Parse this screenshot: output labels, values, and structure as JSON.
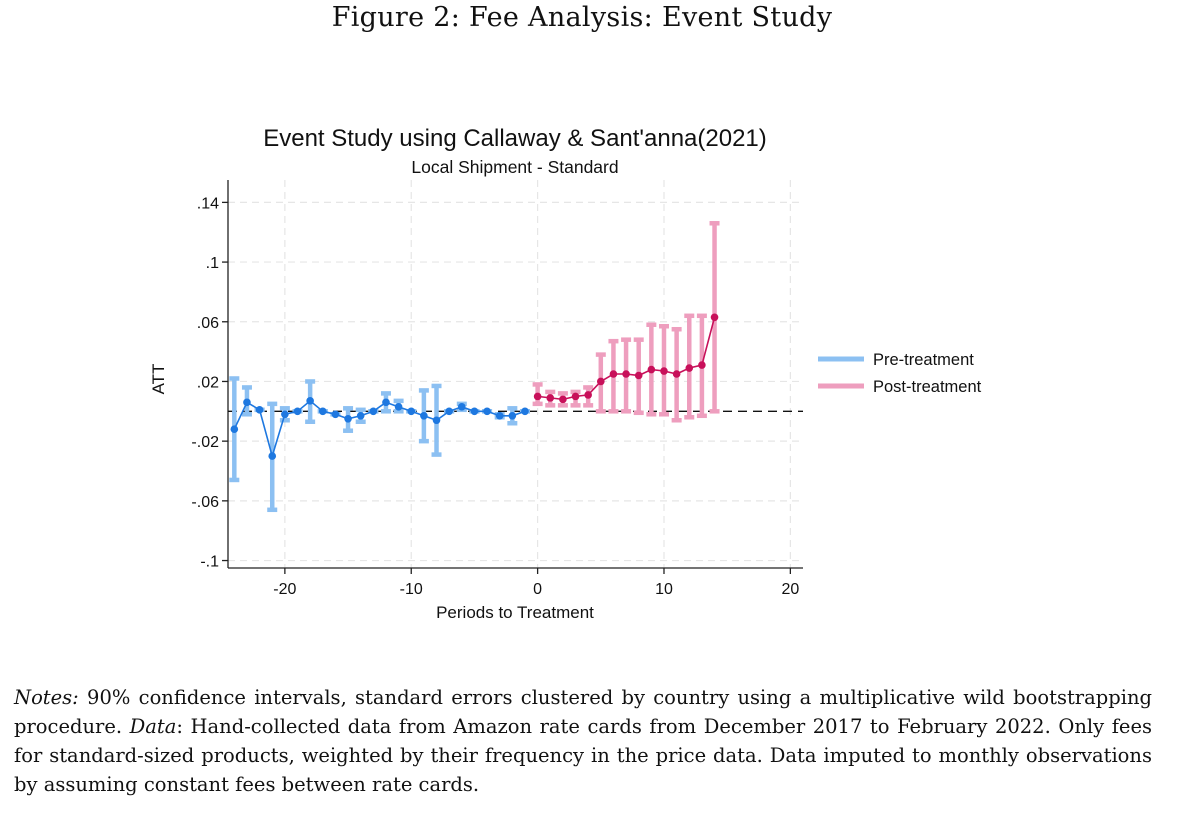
{
  "figure": {
    "caption": "Figure 2: Fee Analysis: Event Study"
  },
  "notes": {
    "label": "Notes:",
    "text1": " 90% confidence intervals, standard errors clustered by country using a multiplicative wild bootstrapping procedure. ",
    "data_label": "Data",
    "text2": ": Hand-collected data from Amazon rate cards from December 2017 to February 2022. Only fees for standard-sized products, weighted by their frequency in the price data. Data imputed to monthly observations by assuming constant fees between rate cards."
  },
  "chart_data": {
    "type": "scatter",
    "title": "Event Study using Callaway & Sant'anna(2021)",
    "subtitle": "Local Shipment - Standard",
    "xlabel": "Periods to Treatment",
    "ylabel": "ATT",
    "xlim": [
      -24.5,
      21
    ],
    "ylim": [
      -0.105,
      0.155
    ],
    "xticks": [
      -20,
      -10,
      0,
      10,
      20
    ],
    "xtick_labels": [
      "-20",
      "-10",
      "0",
      "10",
      "20"
    ],
    "yticks": [
      0.14,
      0.1,
      0.06,
      0.02,
      -0.02,
      -0.06,
      -0.1
    ],
    "ytick_labels": [
      ".14",
      ".1",
      ".06",
      ".02",
      "-.02",
      "-.06",
      "-.1"
    ],
    "grid": true,
    "reference_line_y": 0,
    "legend_position": "right",
    "series": [
      {
        "name": "Pre-treatment",
        "color": "#1E78E0",
        "ci_color": "#8CC0F2",
        "x": [
          -24,
          -23,
          -22,
          -21,
          -20,
          -19,
          -18,
          -17,
          -16,
          -15,
          -14,
          -13,
          -12,
          -11,
          -10,
          -9,
          -8,
          -7,
          -6,
          -5,
          -4,
          -3,
          -2,
          -1
        ],
        "y": [
          -0.012,
          0.006,
          0.001,
          -0.03,
          -0.002,
          0.0,
          0.007,
          0.0,
          -0.002,
          -0.005,
          -0.003,
          0.0,
          0.006,
          0.003,
          0.0,
          -0.003,
          -0.006,
          0.0,
          0.003,
          0.0,
          0.0,
          -0.003,
          -0.003,
          0.0
        ],
        "lo": [
          -0.046,
          -0.002,
          0.001,
          -0.066,
          -0.006,
          0.0,
          -0.007,
          0.0,
          -0.002,
          -0.013,
          -0.007,
          0.0,
          0.0,
          0.0,
          0.0,
          -0.02,
          -0.029,
          0.0,
          0.001,
          0.0,
          0.0,
          -0.004,
          -0.008,
          0.0
        ],
        "hi": [
          0.022,
          0.016,
          0.001,
          0.005,
          0.002,
          0.0,
          0.02,
          0.0,
          -0.002,
          0.002,
          0.001,
          0.0,
          0.012,
          0.007,
          0.0,
          0.014,
          0.017,
          0.0,
          0.005,
          0.0,
          0.0,
          -0.002,
          0.002,
          0.0
        ]
      },
      {
        "name": "Post-treatment",
        "color": "#C8105A",
        "ci_color": "#EE9EBE",
        "x": [
          0,
          1,
          2,
          3,
          4,
          5,
          6,
          7,
          8,
          9,
          10,
          11,
          12,
          13,
          14
        ],
        "y": [
          0.01,
          0.009,
          0.008,
          0.01,
          0.011,
          0.02,
          0.025,
          0.025,
          0.024,
          0.028,
          0.027,
          0.025,
          0.029,
          0.031,
          0.063
        ],
        "lo": [
          0.005,
          0.004,
          0.004,
          0.004,
          0.004,
          0.0,
          0.0,
          0.0,
          -0.001,
          -0.002,
          -0.002,
          -0.006,
          -0.004,
          -0.003,
          0.0
        ],
        "hi": [
          0.018,
          0.013,
          0.012,
          0.013,
          0.016,
          0.038,
          0.047,
          0.048,
          0.048,
          0.058,
          0.057,
          0.055,
          0.064,
          0.064,
          0.126
        ]
      }
    ]
  }
}
